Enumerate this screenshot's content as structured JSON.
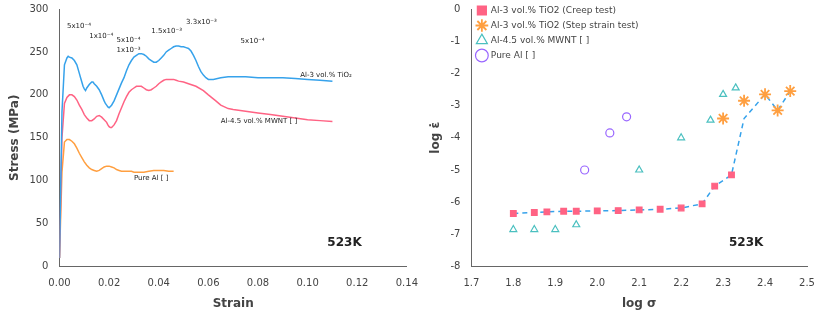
{
  "chart_data": [
    {
      "type": "line",
      "xlabel": "Strain",
      "ylabel": "Stress (MPa)",
      "xlim": [
        0.0,
        0.14
      ],
      "ylim": [
        0,
        300
      ],
      "xticks": [
        {
          "value": 0.0,
          "label": "0.00"
        },
        0.02,
        0.04,
        0.06,
        0.08,
        {
          "value": 0.1,
          "label": "0.10"
        },
        0.12,
        0.14
      ],
      "yticks": [
        0,
        50,
        100,
        150,
        200,
        250,
        300
      ],
      "grid": false,
      "series": [
        {
          "x": [
            0.0,
            0.001,
            0.002,
            0.003,
            0.0035,
            0.004,
            0.005,
            0.006,
            0.007,
            0.008,
            0.0085,
            0.009,
            0.0095,
            0.01,
            0.0105,
            0.011,
            0.012,
            0.013,
            0.0135,
            0.014,
            0.015,
            0.016,
            0.017,
            0.018,
            0.0185,
            0.019,
            0.0195,
            0.02,
            0.021,
            0.022,
            0.023,
            0.024,
            0.025,
            0.026,
            0.027,
            0.028,
            0.029,
            0.03,
            0.031,
            0.032,
            0.033,
            0.034,
            0.035,
            0.036,
            0.037,
            0.038,
            0.039,
            0.04,
            0.041,
            0.042,
            0.043,
            0.044,
            0.045,
            0.046,
            0.047,
            0.048,
            0.049,
            0.05,
            0.051,
            0.052,
            0.053,
            0.054,
            0.055,
            0.056,
            0.057,
            0.058,
            0.059,
            0.06,
            0.062,
            0.065,
            0.068,
            0.07,
            0.075,
            0.08,
            0.085,
            0.09,
            0.095,
            0.1,
            0.105,
            0.11
          ],
          "values": [
            10,
            180,
            235,
            243,
            245,
            244,
            243,
            240,
            235,
            225,
            220,
            215,
            210,
            207,
            205,
            208,
            212,
            215,
            215,
            213,
            210,
            206,
            200,
            193,
            190,
            188,
            186,
            185,
            188,
            193,
            200,
            207,
            214,
            220,
            228,
            235,
            240,
            244,
            246,
            248,
            248,
            247,
            245,
            242,
            240,
            238,
            238,
            240,
            243,
            246,
            250,
            252,
            254,
            256,
            257,
            257,
            256,
            256,
            255,
            254,
            251,
            246,
            240,
            233,
            227,
            223,
            220,
            218,
            218,
            220,
            221,
            221,
            221,
            220,
            220,
            220,
            219,
            218,
            217,
            216
          ]
        },
        {
          "x": [
            0.0,
            0.001,
            0.002,
            0.003,
            0.004,
            0.005,
            0.006,
            0.007,
            0.008,
            0.009,
            0.0095,
            0.01,
            0.0105,
            0.011,
            0.012,
            0.013,
            0.014,
            0.015,
            0.016,
            0.017,
            0.018,
            0.019,
            0.0195,
            0.02,
            0.0205,
            0.021,
            0.022,
            0.023,
            0.024,
            0.025,
            0.026,
            0.027,
            0.028,
            0.029,
            0.03,
            0.031,
            0.032,
            0.033,
            0.034,
            0.035,
            0.036,
            0.037,
            0.038,
            0.039,
            0.04,
            0.041,
            0.042,
            0.043,
            0.044,
            0.045,
            0.046,
            0.047,
            0.048,
            0.05,
            0.052,
            0.055,
            0.058,
            0.06,
            0.063,
            0.065,
            0.068,
            0.07,
            0.075,
            0.08,
            0.085,
            0.09,
            0.095,
            0.1,
            0.105,
            0.11
          ],
          "values": [
            10,
            150,
            190,
            197,
            200,
            200,
            198,
            194,
            188,
            183,
            180,
            177,
            175,
            173,
            170,
            170,
            172,
            175,
            176,
            174,
            171,
            168,
            165,
            163,
            162,
            162,
            165,
            170,
            178,
            185,
            192,
            198,
            203,
            206,
            208,
            210,
            210,
            210,
            208,
            206,
            205,
            206,
            208,
            210,
            213,
            215,
            217,
            218,
            218,
            218,
            218,
            217,
            216,
            215,
            213,
            210,
            205,
            200,
            193,
            188,
            184,
            183,
            181,
            179,
            177,
            175,
            173,
            171,
            170,
            169
          ]
        },
        {
          "x": [
            0.0,
            0.001,
            0.002,
            0.003,
            0.004,
            0.005,
            0.006,
            0.007,
            0.008,
            0.009,
            0.01,
            0.011,
            0.012,
            0.013,
            0.014,
            0.015,
            0.016,
            0.017,
            0.018,
            0.019,
            0.02,
            0.021,
            0.022,
            0.023,
            0.024,
            0.025,
            0.026,
            0.027,
            0.028,
            0.029,
            0.03,
            0.032,
            0.034,
            0.036,
            0.038,
            0.04,
            0.042,
            0.044,
            0.046
          ],
          "values": [
            10,
            110,
            145,
            148,
            148,
            146,
            143,
            138,
            132,
            127,
            122,
            118,
            115,
            113,
            112,
            111,
            112,
            114,
            116,
            117,
            117,
            116,
            115,
            113,
            112,
            111,
            111,
            111,
            111,
            111,
            110,
            110,
            110,
            111,
            112,
            112,
            112,
            111,
            111
          ]
        }
      ],
      "annotations": [
        {
          "text": "5x10⁻⁴",
          "x": 0.003,
          "y": 284
        },
        {
          "text": "1x10⁻⁴",
          "x": 0.012,
          "y": 272
        },
        {
          "text": "5x10⁻⁴",
          "x": 0.023,
          "y": 268
        },
        {
          "text": "1x10⁻³",
          "x": 0.023,
          "y": 256
        },
        {
          "text": "1.5x10⁻³",
          "x": 0.037,
          "y": 278
        },
        {
          "text": "3.3x10⁻³",
          "x": 0.051,
          "y": 289
        },
        {
          "text": "5x10⁻⁴",
          "x": 0.073,
          "y": 267
        },
        {
          "text": "Al-3 vol.% TiO₂",
          "x": 0.097,
          "y": 227
        },
        {
          "text": "Al-4.5 vol.% MWNT [ ]",
          "x": 0.065,
          "y": 174
        },
        {
          "text": "Pure Al [ ]",
          "x": 0.03,
          "y": 107
        },
        {
          "text": "523K"
        }
      ]
    },
    {
      "type": "scatter",
      "xlabel": "log σ",
      "ylabel": "log ε̇",
      "xlim": [
        1.7,
        2.5
      ],
      "ylim": [
        -8,
        0
      ],
      "xticks": [
        1.7,
        1.8,
        1.9,
        {
          "value": 2.0,
          "label": "2.0"
        },
        2.1,
        2.2,
        2.3,
        2.4,
        2.5
      ],
      "yticks": [
        0,
        -1,
        -2,
        -3,
        -4,
        -5,
        -6,
        -7,
        -8
      ],
      "grid": false,
      "legend": "upper left",
      "series": [
        {
          "type": "line",
          "line_style": "dashed",
          "x": [
            1.8,
            1.85,
            1.88,
            1.92,
            1.95,
            2.0,
            2.05,
            2.1,
            2.15,
            2.2,
            2.25,
            2.28,
            2.32,
            2.35,
            2.4,
            2.43,
            2.46
          ],
          "values": [
            -6.35,
            -6.32,
            -6.3,
            -6.28,
            -6.28,
            -6.27,
            -6.26,
            -6.24,
            -6.22,
            -6.18,
            -6.05,
            -5.5,
            -5.15,
            -3.4,
            -2.65,
            -3.15,
            -2.55
          ]
        },
        {
          "name": "Al-3 vol.% TiO2 (Creep test)",
          "marker": "square",
          "x": [
            1.8,
            1.85,
            1.88,
            1.92,
            1.95,
            2.0,
            2.05,
            2.1,
            2.15,
            2.2,
            2.25,
            2.28,
            2.32
          ],
          "values": [
            -6.35,
            -6.32,
            -6.3,
            -6.28,
            -6.28,
            -6.27,
            -6.26,
            -6.24,
            -6.22,
            -6.18,
            -6.05,
            -5.5,
            -5.15
          ]
        },
        {
          "name": "Al-3 vol.% TiO2 (Step strain test)",
          "marker": "star",
          "x": [
            2.3,
            2.35,
            2.4,
            2.43,
            2.46
          ],
          "values": [
            -3.4,
            -2.85,
            -2.65,
            -3.15,
            -2.55
          ]
        },
        {
          "name": "Al-4.5 vol.% MWNT [ ]",
          "marker": "open_triangle",
          "x": [
            1.8,
            1.85,
            1.9,
            1.95,
            2.1,
            2.2,
            2.27,
            2.3,
            2.33
          ],
          "values": [
            -6.85,
            -6.85,
            -6.85,
            -6.7,
            -5.0,
            -4.0,
            -3.45,
            -2.65,
            -2.45
          ]
        },
        {
          "name": "Pure Al [ ]",
          "marker": "open_circle",
          "x": [
            1.97,
            2.03,
            2.07
          ],
          "values": [
            -5.0,
            -3.85,
            -3.35
          ]
        }
      ],
      "annotations": [
        {
          "text": "523K"
        }
      ]
    }
  ]
}
